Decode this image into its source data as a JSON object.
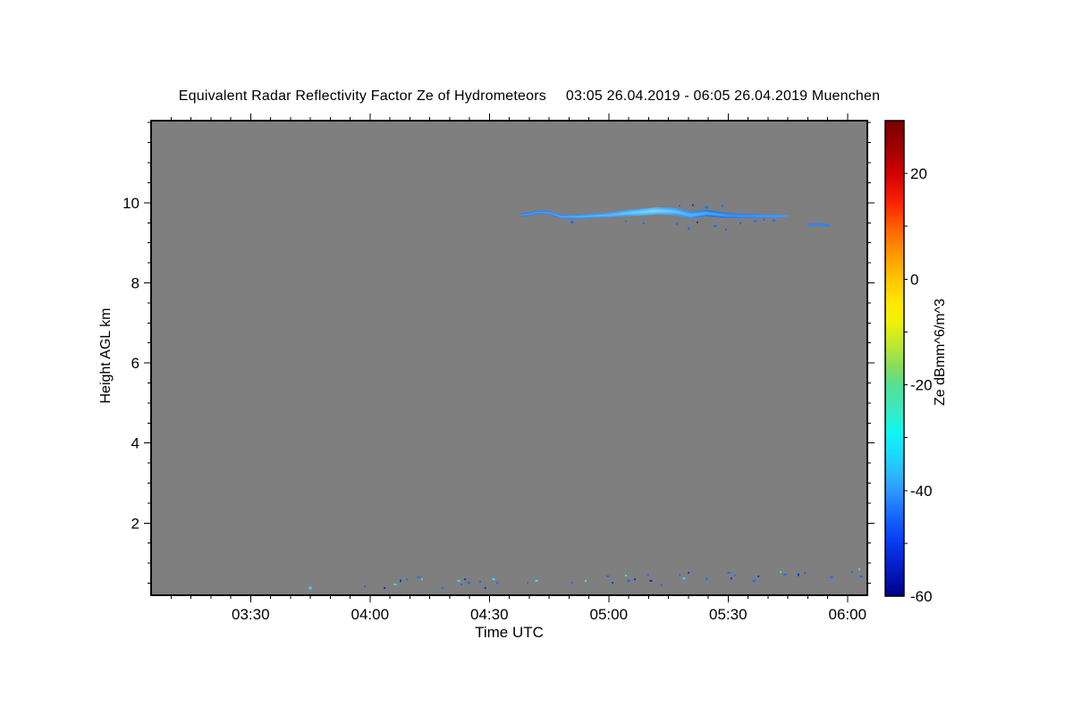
{
  "figure": {
    "title_main": "Equivalent Radar Reflectivity Factor Ze of Hydrometeors",
    "title_period": "03:05 26.04.2019 - 06:05 26.04.2019 Muenchen"
  },
  "chart_data": {
    "type": "heatmap",
    "title": "Equivalent Radar Reflectivity Factor Ze of Hydrometeors",
    "subtitle": "03:05 26.04.2019 - 06:05 26.04.2019 Muenchen",
    "station": "Muenchen",
    "xlabel": "Time UTC",
    "ylabel": "Height AGL km",
    "no_signal_color": "#7f7f7f",
    "frame_color": "#000000",
    "x_axis": {
      "start": "03:05",
      "end": "06:05",
      "total_minutes": 180,
      "tick_labels": [
        "03:30",
        "04:00",
        "04:30",
        "05:00",
        "05:30",
        "06:00"
      ],
      "tick_minutes": [
        25,
        55,
        85,
        115,
        145,
        175
      ],
      "minor_tick_every_min": 5
    },
    "y_axis": {
      "range_km": [
        0.2,
        12.05
      ],
      "tick_values": [
        2,
        4,
        6,
        8,
        10
      ],
      "minor_tick_every_km": 0.5
    },
    "colorbar": {
      "label": "Ze dBmm^6/m^3",
      "range": [
        -60,
        30
      ],
      "tick_values": [
        20,
        0,
        -20,
        -40,
        -60
      ],
      "minor_tick_every": 10,
      "gradient_top_to_bottom": [
        [
          0.0,
          "#780000"
        ],
        [
          0.05,
          "#9a0000"
        ],
        [
          0.11,
          "#d00000"
        ],
        [
          0.17,
          "#fa2000"
        ],
        [
          0.23,
          "#ff6600"
        ],
        [
          0.29,
          "#ffa000"
        ],
        [
          0.333,
          "#ffc400"
        ],
        [
          0.38,
          "#ffe600"
        ],
        [
          0.42,
          "#f2f200"
        ],
        [
          0.47,
          "#c0e830"
        ],
        [
          0.52,
          "#84dc60"
        ],
        [
          0.556,
          "#55e095"
        ],
        [
          0.61,
          "#38eac2"
        ],
        [
          0.655,
          "#0ef6f2"
        ],
        [
          0.7,
          "#18dcfc"
        ],
        [
          0.74,
          "#2cbaff"
        ],
        [
          0.778,
          "#2c9aff"
        ],
        [
          0.83,
          "#1868ff"
        ],
        [
          0.88,
          "#0840f5"
        ],
        [
          0.93,
          "#0522cc"
        ],
        [
          1.0,
          "#000088"
        ]
      ]
    },
    "cloud_band": {
      "description": "thin cloud layer near 9.7 km, approx 04:38-05:45 UTC, Ze around -35 to -45 dB",
      "points_min_km_halfwidth": [
        [
          93.0,
          9.69,
          0.035
        ],
        [
          95.5,
          9.72,
          0.04
        ],
        [
          96.9,
          9.76,
          0.04
        ],
        [
          100.2,
          9.75,
          0.04
        ],
        [
          103.1,
          9.65,
          0.045
        ],
        [
          107.0,
          9.65,
          0.05
        ],
        [
          110.8,
          9.67,
          0.05
        ],
        [
          114.8,
          9.69,
          0.055
        ],
        [
          119.3,
          9.74,
          0.07
        ],
        [
          122.7,
          9.76,
          0.08
        ],
        [
          127.2,
          9.8,
          0.085
        ],
        [
          131.7,
          9.78,
          0.09
        ],
        [
          135.5,
          9.69,
          0.09
        ],
        [
          139.6,
          9.74,
          0.08
        ],
        [
          144.0,
          9.69,
          0.07
        ],
        [
          148.5,
          9.67,
          0.055
        ],
        [
          153.0,
          9.67,
          0.045
        ],
        [
          157.1,
          9.66,
          0.035
        ],
        [
          159.8,
          9.67,
          0.03
        ]
      ],
      "gradient": [
        [
          0.0,
          "#2b7de8"
        ],
        [
          0.18,
          "#2e8af0"
        ],
        [
          0.35,
          "#3da2fa"
        ],
        [
          0.5,
          "#55baff"
        ],
        [
          0.6,
          "#3d9cf5"
        ],
        [
          0.72,
          "#2478e2"
        ],
        [
          0.85,
          "#2e84ea"
        ],
        [
          1.0,
          "#3a90f0"
        ]
      ],
      "gradient_core": [
        [
          0.0,
          "#3f97f2"
        ],
        [
          0.35,
          "#5ab8ff"
        ],
        [
          0.5,
          "#7ed2ff"
        ],
        [
          0.62,
          "#54b2ff"
        ],
        [
          0.8,
          "#3c90ee"
        ],
        [
          1.0,
          "#4a9ef4"
        ]
      ]
    },
    "cloud_band_2": {
      "description": "short detached segment near 9.45 km around 05:50-05:56 UTC",
      "points_min_km_halfwidth": [
        [
          165.2,
          9.45,
          0.03
        ],
        [
          167.8,
          9.46,
          0.032
        ],
        [
          170.6,
          9.43,
          0.028
        ]
      ],
      "color": "#2e86ec"
    },
    "band_speckles_min_km_color": [
      [
        105.8,
        9.51,
        "b"
      ],
      [
        119.3,
        9.54,
        "b"
      ],
      [
        123.8,
        9.49,
        "b"
      ],
      [
        132.1,
        9.47,
        "b"
      ],
      [
        135.1,
        9.36,
        "b"
      ],
      [
        137.3,
        9.51,
        "n"
      ],
      [
        141.8,
        9.42,
        "b"
      ],
      [
        144.5,
        9.33,
        "b"
      ],
      [
        148.1,
        9.49,
        "b"
      ],
      [
        151.9,
        9.54,
        "b"
      ],
      [
        132.8,
        9.92,
        "b"
      ],
      [
        136.2,
        9.94,
        "n"
      ],
      [
        139.6,
        9.89,
        "b"
      ],
      [
        143.6,
        9.92,
        "b"
      ],
      [
        154.0,
        9.58,
        "b"
      ],
      [
        156.5,
        9.56,
        "b"
      ]
    ],
    "ground_clutter_min_km_color": [
      [
        40.0,
        0.38,
        "c"
      ],
      [
        53.7,
        0.42,
        "b"
      ],
      [
        58.7,
        0.38,
        "n"
      ],
      [
        61.3,
        0.47,
        "c"
      ],
      [
        62.7,
        0.56,
        "n"
      ],
      [
        64.3,
        0.6,
        "b"
      ],
      [
        67.2,
        0.65,
        "b"
      ],
      [
        68.1,
        0.6,
        "c"
      ],
      [
        73.3,
        0.38,
        "b"
      ],
      [
        77.3,
        0.56,
        "c"
      ],
      [
        78.0,
        0.47,
        "b"
      ],
      [
        78.9,
        0.6,
        "n"
      ],
      [
        79.8,
        0.51,
        "b"
      ],
      [
        82.7,
        0.54,
        "b"
      ],
      [
        84.0,
        0.38,
        "n"
      ],
      [
        86.1,
        0.6,
        "c"
      ],
      [
        87.0,
        0.51,
        "b"
      ],
      [
        94.6,
        0.51,
        "b"
      ],
      [
        96.9,
        0.56,
        "c"
      ],
      [
        105.8,
        0.51,
        "b"
      ],
      [
        109.2,
        0.56,
        "c"
      ],
      [
        114.8,
        0.67,
        "b"
      ],
      [
        116.0,
        0.51,
        "n"
      ],
      [
        119.3,
        0.69,
        "c"
      ],
      [
        120.0,
        0.56,
        "b"
      ],
      [
        121.6,
        0.6,
        "n"
      ],
      [
        124.9,
        0.71,
        "b"
      ],
      [
        125.6,
        0.56,
        "n"
      ],
      [
        128.3,
        0.45,
        "b"
      ],
      [
        132.8,
        0.71,
        "b"
      ],
      [
        133.9,
        0.62,
        "c"
      ],
      [
        135.1,
        0.76,
        "n"
      ],
      [
        139.6,
        0.6,
        "b"
      ],
      [
        145.2,
        0.76,
        "b"
      ],
      [
        145.8,
        0.62,
        "n"
      ],
      [
        146.7,
        0.69,
        "b"
      ],
      [
        151.5,
        0.56,
        "b"
      ],
      [
        152.6,
        0.67,
        "n"
      ],
      [
        158.2,
        0.78,
        "c"
      ],
      [
        159.3,
        0.71,
        "b"
      ],
      [
        162.7,
        0.71,
        "n"
      ],
      [
        164.3,
        0.76,
        "b"
      ],
      [
        171.0,
        0.65,
        "b"
      ],
      [
        176.2,
        0.78,
        "b"
      ],
      [
        178.0,
        0.85,
        "c"
      ],
      [
        178.4,
        0.67,
        "b"
      ]
    ],
    "speckle_palette": {
      "b": "#1e6fe8",
      "c": "#3cd6f5",
      "n": "#1034c8"
    }
  }
}
